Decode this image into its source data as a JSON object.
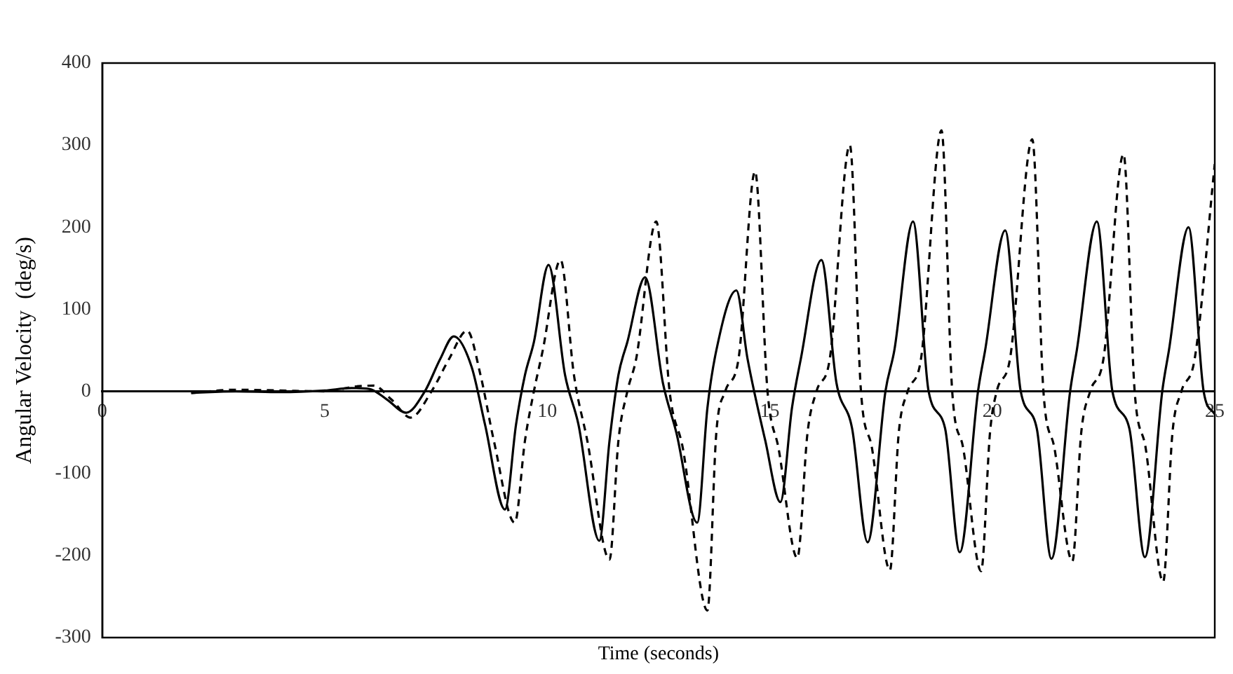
{
  "chart_data": {
    "type": "line",
    "xlabel": "Time (seconds)",
    "ylabel": "Angular Velocity  (deg/s)",
    "xlim": [
      0,
      25
    ],
    "xticks": [
      0,
      5,
      10,
      15,
      20,
      25
    ],
    "ylim": [
      -300,
      400
    ],
    "yticks": [
      -300,
      -200,
      -100,
      0,
      100,
      200,
      300,
      400
    ],
    "grid": false,
    "legend": false,
    "marker": "none",
    "series": [
      {
        "color": "#000000",
        "line_style": "dashed",
        "x": [
          2,
          3,
          4,
          5,
          5.7,
          6.1,
          6.5,
          6.93,
          7.4,
          7.8,
          8.2,
          8.5,
          8.8,
          9.27,
          9.5,
          9.7,
          9.9,
          10.3,
          10.6,
          10.9,
          11.4,
          11.6,
          11.8,
          12.0,
          12.45,
          12.75,
          13.05,
          13.6,
          13.8,
          14.0,
          14.3,
          14.67,
          14.95,
          15.2,
          15.62,
          15.85,
          16.05,
          16.35,
          16.8,
          17.05,
          17.3,
          17.7,
          17.9,
          18.1,
          18.4,
          18.86,
          19.1,
          19.35,
          19.75,
          19.95,
          20.1,
          20.4,
          20.9,
          21.15,
          21.4,
          21.8,
          22.0,
          22.2,
          22.5,
          22.95,
          23.2,
          23.45,
          23.84,
          24.05,
          24.25,
          24.55,
          25
        ],
        "values": [
          -2,
          2,
          1,
          0,
          6,
          7,
          -10,
          -32,
          0,
          40,
          74,
          20,
          -60,
          -160,
          -60,
          0,
          50,
          160,
          20,
          -60,
          -205,
          -60,
          0,
          40,
          207,
          0,
          -70,
          -267,
          -50,
          0,
          40,
          268,
          0,
          -70,
          -203,
          -50,
          0,
          40,
          300,
          0,
          -70,
          -218,
          -50,
          0,
          40,
          318,
          0,
          -70,
          -219,
          -50,
          0,
          40,
          307,
          0,
          -70,
          -207,
          -50,
          0,
          40,
          289,
          0,
          -70,
          -232,
          -50,
          0,
          40,
          277
        ]
      },
      {
        "color": "#000000",
        "line_style": "solid",
        "x": [
          2,
          3,
          4,
          5,
          5.6,
          6.0,
          6.4,
          6.83,
          7.25,
          7.6,
          7.9,
          8.3,
          8.6,
          9.05,
          9.3,
          9.5,
          9.7,
          10.03,
          10.4,
          10.7,
          11.17,
          11.4,
          11.6,
          11.8,
          12.2,
          12.6,
          12.9,
          13.37,
          13.6,
          13.8,
          14.25,
          14.5,
          14.9,
          15.24,
          15.5,
          15.7,
          16.16,
          16.5,
          16.85,
          17.2,
          17.6,
          17.8,
          18.22,
          18.57,
          18.94,
          19.27,
          19.68,
          19.84,
          20.29,
          20.64,
          21.0,
          21.33,
          21.75,
          21.9,
          22.35,
          22.7,
          23.08,
          23.43,
          23.82,
          23.97,
          24.41,
          24.75,
          25
        ],
        "values": [
          -2,
          0,
          -1,
          1,
          4,
          3,
          -10,
          -26,
          0,
          40,
          67,
          30,
          -40,
          -144,
          -40,
          20,
          60,
          154,
          20,
          -40,
          -182,
          -60,
          20,
          60,
          139,
          10,
          -50,
          -160,
          -20,
          50,
          123,
          40,
          -60,
          -135,
          -20,
          40,
          160,
          10,
          -45,
          -184,
          0,
          50,
          207,
          0,
          -45,
          -196,
          0,
          50,
          196,
          0,
          -45,
          -204,
          0,
          50,
          207,
          0,
          -45,
          -202,
          0,
          50,
          200,
          0,
          -28
        ]
      }
    ]
  }
}
